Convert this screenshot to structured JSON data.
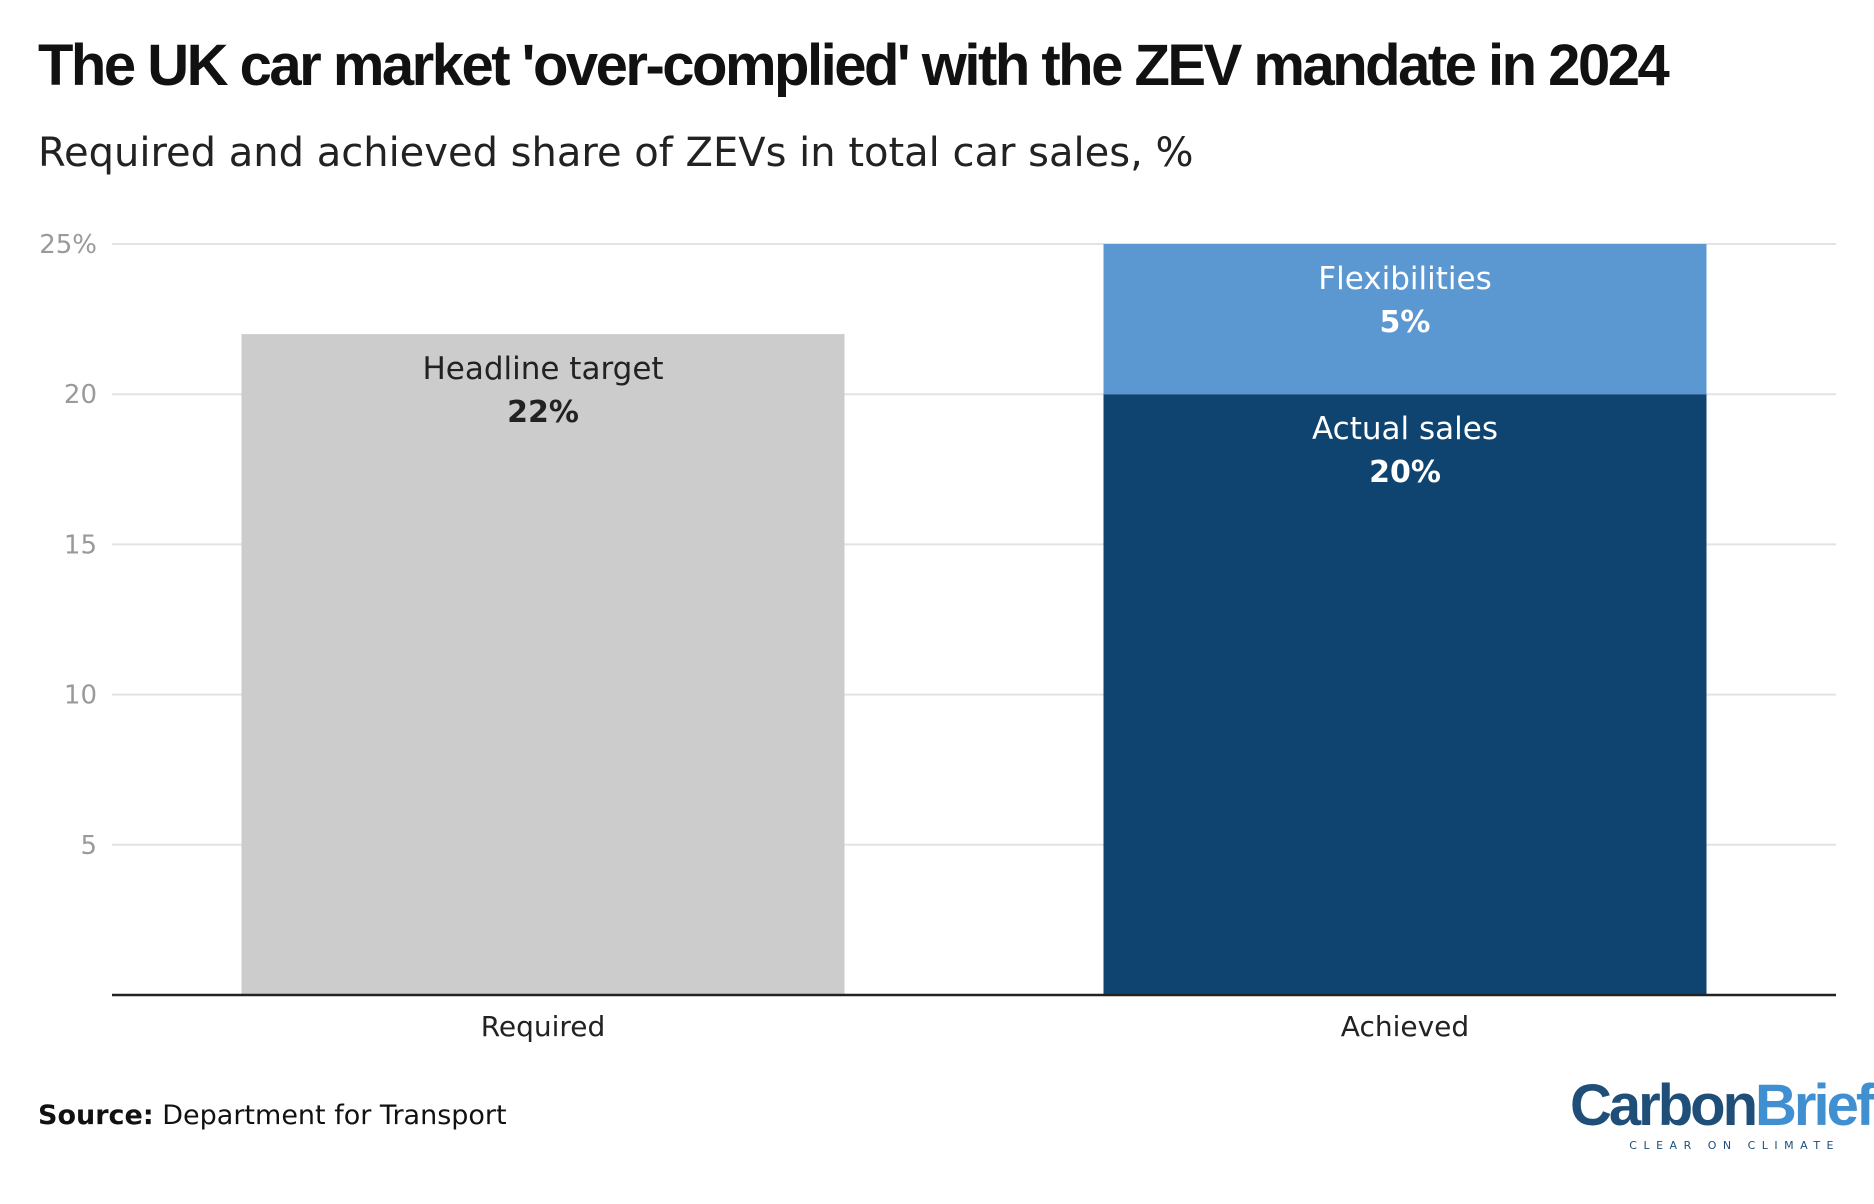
{
  "header": {
    "title": "The UK car market 'over-complied' with the ZEV mandate in 2024",
    "subtitle": "Required and achieved share of ZEVs in total car sales, %"
  },
  "chart_data": {
    "type": "bar",
    "stacked": true,
    "categories": [
      "Required",
      "Achieved"
    ],
    "series": [
      {
        "name": "Headline target",
        "values": [
          22,
          0
        ],
        "value_labels": [
          "22%",
          ""
        ],
        "color": "#cccccc",
        "label_color": "#222222"
      },
      {
        "name": "Actual sales",
        "values": [
          0,
          20
        ],
        "value_labels": [
          "",
          "20%"
        ],
        "color": "#0f4370",
        "label_color": "#ffffff"
      },
      {
        "name": "Flexibilities",
        "values": [
          0,
          5
        ],
        "value_labels": [
          "",
          "5%"
        ],
        "color": "#5b98d2",
        "label_color": "#ffffff"
      }
    ],
    "ylim": [
      0,
      25
    ],
    "yticks": [
      5,
      10,
      15,
      20,
      25
    ],
    "ytick_labels": [
      "5",
      "10",
      "15",
      "20",
      "25%"
    ],
    "grid": true
  },
  "footer": {
    "source_label": "Source:",
    "source_text": "Department for Transport",
    "logo_part1": "Carbon",
    "logo_part2": "Brief",
    "logo_tagline": "CLEAR ON CLIMATE"
  }
}
